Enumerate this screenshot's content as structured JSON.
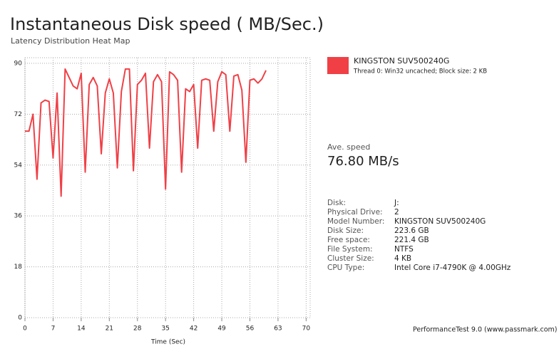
{
  "chart_data": {
    "type": "line",
    "title": "Instantaneous Disk speed ( MB/Sec.)",
    "subtitle": "Latency Distribution Heat Map",
    "xlabel": "Time (Sec)",
    "x": [
      0,
      1,
      2,
      3,
      4,
      5,
      6,
      7,
      8,
      9,
      10,
      11,
      12,
      13,
      14,
      15,
      16,
      17,
      18,
      19,
      20,
      21,
      22,
      23,
      24,
      25,
      26,
      27,
      28,
      29,
      30,
      31,
      32,
      33,
      34,
      35,
      36,
      37,
      38,
      39,
      40,
      41,
      42,
      43,
      44,
      45,
      46,
      47,
      48,
      49,
      50,
      51,
      52,
      53,
      54,
      55,
      56,
      57,
      58,
      59,
      60
    ],
    "series": [
      {
        "name": "KINGSTON SUV500240G",
        "color": "#f04046",
        "values": [
          66,
          66,
          72,
          49,
          76,
          77,
          76.5,
          56.5,
          79.5,
          43,
          88,
          85,
          82,
          81,
          86.5,
          51.5,
          82.5,
          85,
          82,
          58,
          79.5,
          84.5,
          79.5,
          53,
          80,
          88,
          88,
          52,
          82.5,
          84,
          86.5,
          60,
          83.5,
          86,
          83.5,
          45.5,
          87,
          86,
          84,
          51.5,
          81,
          80,
          82.5,
          60,
          84,
          84.5,
          84,
          66,
          83.5,
          87,
          86,
          66,
          85.5,
          86,
          80.5,
          55,
          84,
          84.5,
          83,
          84.5,
          87.5
        ]
      }
    ],
    "xlim": [
      0,
      71
    ],
    "ylim": [
      0,
      92
    ],
    "xticks": [
      0,
      7,
      14,
      21,
      28,
      35,
      42,
      49,
      56,
      63,
      70
    ],
    "yticks": [
      0,
      18,
      36,
      54,
      72,
      90
    ],
    "grid": true
  },
  "panel": {
    "legend_note": "Thread 0: Win32 uncached; Block size: 2 KB",
    "ave_speed_label": "Ave. speed",
    "ave_speed": "76.80 MB/s",
    "details": [
      {
        "label": "Disk:",
        "value": "J:"
      },
      {
        "label": "Physical Drive:",
        "value": "2"
      },
      {
        "label": "Model Number:",
        "value": "KINGSTON SUV500240G"
      },
      {
        "label": "Disk Size:",
        "value": "223.6 GB"
      },
      {
        "label": "Free space:",
        "value": "221.4 GB"
      },
      {
        "label": "File System:",
        "value": "NTFS"
      },
      {
        "label": "Cluster Size:",
        "value": "4 KB"
      },
      {
        "label": "CPU Type:",
        "value": "Intel Core i7-4790K @ 4.00GHz"
      }
    ]
  },
  "footer": "PerformanceTest 9.0 (www.passmark.com)"
}
